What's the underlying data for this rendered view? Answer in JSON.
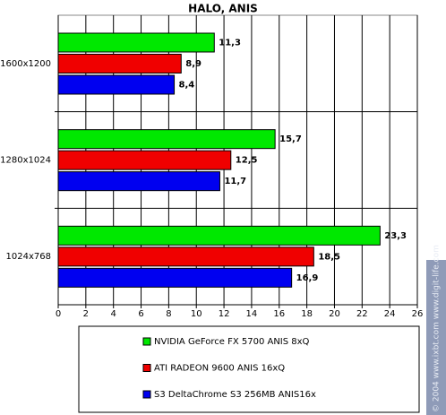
{
  "chart_data": {
    "type": "hbar",
    "title": "HALO, ANIS",
    "categories": [
      "1600x1200",
      "1280x1024",
      "1024x768"
    ],
    "series": [
      {
        "name": "NVIDIA GeForce FX 5700 ANIS 8xQ",
        "color": "#00e800",
        "values": [
          11.3,
          15.7,
          23.3
        ],
        "value_labels": [
          "11,3",
          "15,7",
          "23,3"
        ]
      },
      {
        "name": "ATI RADEON 9600 ANIS 16xQ",
        "color": "#f00000",
        "values": [
          8.9,
          12.5,
          18.5
        ],
        "value_labels": [
          "8,9",
          "12,5",
          "18,5"
        ]
      },
      {
        "name": "S3 DeltaChrome S3 256MB ANIS16x",
        "color": "#0000f0",
        "values": [
          8.4,
          11.7,
          16.9
        ],
        "value_labels": [
          "8,4",
          "11,7",
          "16,9"
        ]
      }
    ],
    "xlim": [
      0,
      26
    ],
    "xticks": [
      0,
      2,
      4,
      6,
      8,
      10,
      12,
      14,
      16,
      18,
      20,
      22,
      24,
      26
    ],
    "grid": true,
    "watermark": "© 2004 www.ixbt.com www.digit-life.com"
  }
}
